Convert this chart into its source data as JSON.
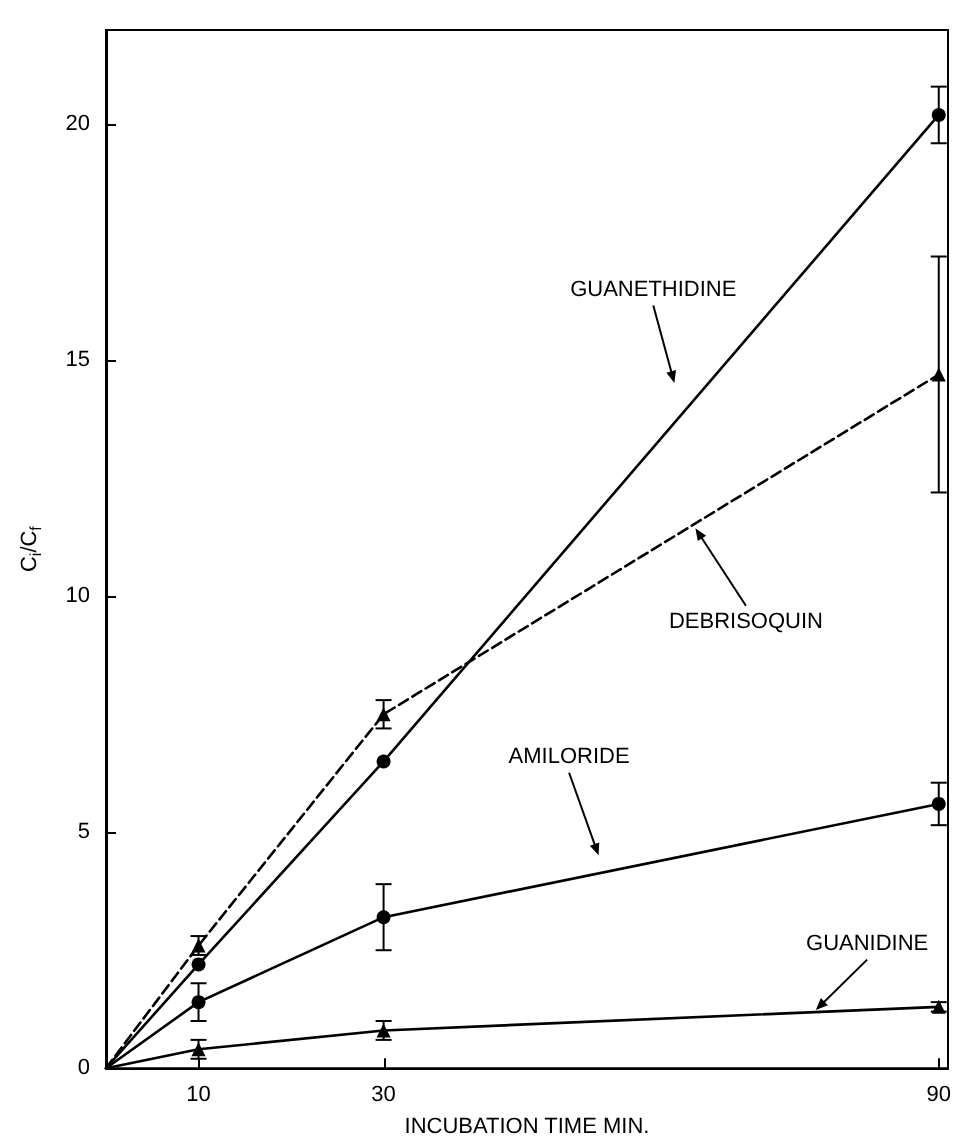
{
  "chart_data": {
    "type": "line",
    "xlabel": "INCUBATION TIME MIN.",
    "ylabel": "C$_{i}$/C$_{f}$",
    "x": [
      0,
      10,
      30,
      90
    ],
    "xlim": [
      0,
      91
    ],
    "xticks": [
      10,
      30,
      90
    ],
    "ylim": [
      0,
      22
    ],
    "yticks": [
      0,
      5,
      10,
      15,
      20
    ],
    "grid": false,
    "legend": false,
    "series": [
      {
        "name": "GUANETHIDINE",
        "color": "#000000",
        "marker": "circle",
        "line_style": "solid",
        "values": [
          0,
          2.2,
          6.5,
          20.2
        ],
        "errors": [
          null,
          null,
          null,
          0.6
        ]
      },
      {
        "name": "DEBRISOQUIN",
        "color": "#000000",
        "marker": "triangle",
        "line_style": "dashed",
        "values": [
          0,
          2.6,
          7.5,
          14.7
        ],
        "errors": [
          null,
          0.2,
          0.3,
          2.5
        ]
      },
      {
        "name": "AMILORIDE",
        "color": "#000000",
        "marker": "circle",
        "line_style": "solid",
        "values": [
          0,
          1.4,
          3.2,
          5.6
        ],
        "errors": [
          null,
          0.4,
          0.7,
          0.45
        ]
      },
      {
        "name": "GUANIDINE",
        "color": "#000000",
        "marker": "triangle",
        "line_style": "solid",
        "values": [
          0,
          0.4,
          0.8,
          1.3
        ],
        "errors": [
          null,
          0.2,
          0.2,
          0.1
        ]
      }
    ]
  }
}
